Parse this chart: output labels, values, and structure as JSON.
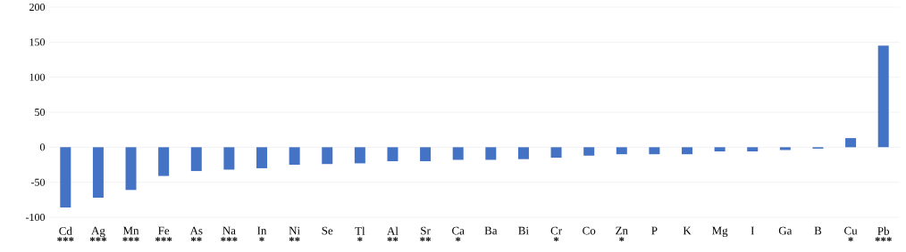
{
  "chart_data": {
    "type": "bar",
    "categories": [
      "Cd",
      "Ag",
      "Mn",
      "Fe",
      "As",
      "Na",
      "In",
      "Ni",
      "Se",
      "Tl",
      "Al",
      "Sr",
      "Ca",
      "Ba",
      "Bi",
      "Cr",
      "Co",
      "Zn",
      "P",
      "K",
      "Mg",
      "I",
      "Ga",
      "B",
      "Cu",
      "Pb"
    ],
    "values": [
      -86,
      -72,
      -61,
      -41,
      -34,
      -32,
      -30,
      -25,
      -24,
      -23,
      -20,
      -20,
      -18,
      -18,
      -17,
      -15,
      -12,
      -10,
      -10,
      -10,
      -6,
      -6,
      -4,
      -2,
      13,
      145
    ],
    "color": "#4472c4",
    "ylim": [
      -100,
      200
    ],
    "yticks": [
      -100,
      -50,
      0,
      50,
      100,
      150,
      200
    ],
    "grid": "y",
    "annotations": [
      "***",
      "***",
      "***",
      "***",
      "**",
      "***",
      "*",
      "**",
      null,
      "*",
      "**",
      "**",
      "*",
      null,
      null,
      "*",
      null,
      "*",
      null,
      null,
      null,
      null,
      null,
      null,
      "*",
      "***"
    ]
  }
}
